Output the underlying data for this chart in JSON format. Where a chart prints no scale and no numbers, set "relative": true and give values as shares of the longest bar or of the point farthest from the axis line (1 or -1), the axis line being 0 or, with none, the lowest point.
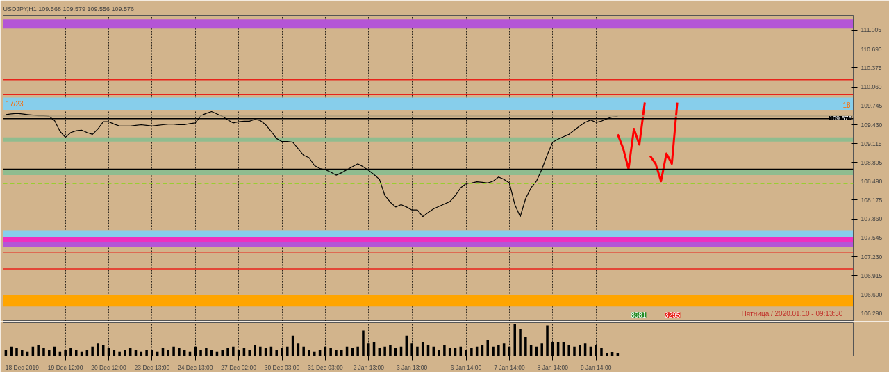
{
  "chart_data": [
    {
      "type": "line",
      "title": "USDJPY,H1  109.568 109.579 109.556 109.576",
      "categories": [
        null,
        null,
        null,
        null,
        null,
        null,
        null,
        null,
        null,
        null,
        null,
        null,
        null,
        null,
        null,
        null,
        null,
        null,
        null,
        null,
        null,
        null,
        null,
        null,
        null,
        null,
        null,
        null,
        null,
        null,
        null,
        null,
        null,
        null,
        null,
        null,
        null,
        null,
        null,
        null,
        null,
        null,
        null,
        null,
        null,
        null,
        null,
        null,
        null,
        null,
        null,
        null,
        null,
        null,
        null,
        null,
        null,
        null,
        null,
        null,
        null,
        null,
        null,
        null,
        null,
        null,
        null,
        null,
        null,
        null,
        null,
        null,
        null,
        null,
        null,
        null,
        null,
        null,
        null,
        null,
        null,
        null,
        null,
        null,
        null,
        null,
        null,
        null,
        null,
        null,
        null,
        null,
        null,
        null,
        null,
        null,
        null,
        null,
        null,
        null,
        null,
        null,
        null,
        null,
        null,
        null,
        null,
        null,
        null,
        null,
        null,
        null,
        null,
        null,
        null,
        null,
        null,
        null,
        null,
        null,
        null,
        null,
        null,
        null,
        null,
        null,
        null,
        null,
        null,
        null,
        null,
        null,
        null,
        null,
        null,
        null,
        null,
        null,
        null,
        null,
        null,
        null,
        null,
        null,
        null,
        null,
        null,
        null,
        null,
        null,
        null,
        null,
        null,
        null,
        null,
        null,
        null
      ],
      "series": [
        {
          "color": "#000000",
          "values": [
            109.6,
            109.61,
            109.62,
            109.61,
            109.6,
            109.59,
            109.58,
            109.58,
            109.57,
            109.5,
            109.32,
            109.22,
            109.3,
            109.33,
            109.34,
            109.3,
            109.27,
            109.36,
            109.48,
            109.48,
            109.44,
            109.41,
            109.41,
            109.41,
            109.42,
            109.43,
            109.42,
            109.41,
            109.42,
            109.43,
            109.44,
            109.44,
            109.43,
            109.43,
            109.45,
            109.46,
            109.58,
            109.62,
            109.65,
            109.61,
            109.57,
            109.51,
            109.46,
            109.48,
            109.49,
            109.49,
            109.52,
            109.5,
            109.43,
            109.32,
            109.2,
            109.15,
            109.15,
            109.14,
            109.03,
            108.92,
            108.88,
            108.75,
            108.7,
            108.68,
            108.64,
            108.59,
            108.63,
            108.68,
            108.73,
            108.78,
            108.73,
            108.67,
            108.6,
            108.52,
            108.25,
            108.14,
            108.06,
            108.1,
            108.06,
            108.01,
            108.01,
            107.9,
            107.97,
            108.03,
            108.07,
            108.11,
            108.15,
            108.25,
            108.38,
            108.45,
            108.46,
            108.48,
            108.47,
            108.46,
            108.49,
            108.56,
            108.52,
            108.46,
            108.1,
            107.9,
            108.2,
            108.38,
            108.49,
            108.69,
            108.93,
            109.14,
            109.19,
            109.23,
            109.27,
            109.34,
            109.41,
            109.47,
            109.51,
            109.47,
            109.49,
            109.53,
            109.56,
            109.57,
            null,
            null,
            null,
            null,
            null,
            null,
            null,
            null,
            null,
            null,
            null,
            null,
            null,
            null,
            null,
            null,
            null,
            null,
            null,
            null,
            null,
            null,
            null,
            null,
            null,
            null,
            null,
            null,
            null,
            null,
            null,
            null,
            null,
            null,
            null,
            null,
            null,
            null,
            null,
            null,
            null,
            null,
            null
          ]
        },
        {
          "color": "#ff0000",
          "values": [
            null,
            null,
            null,
            null,
            null,
            null,
            null,
            null,
            null,
            null,
            null,
            null,
            null,
            null,
            null,
            null,
            null,
            null,
            null,
            null,
            null,
            null,
            null,
            null,
            null,
            null,
            null,
            null,
            null,
            null,
            null,
            null,
            null,
            null,
            null,
            null,
            null,
            null,
            null,
            null,
            null,
            null,
            null,
            null,
            null,
            null,
            null,
            null,
            null,
            null,
            null,
            null,
            null,
            null,
            null,
            null,
            null,
            null,
            null,
            null,
            null,
            null,
            null,
            null,
            null,
            null,
            null,
            null,
            null,
            null,
            null,
            null,
            null,
            null,
            null,
            null,
            null,
            null,
            null,
            null,
            null,
            null,
            null,
            null,
            null,
            null,
            null,
            null,
            null,
            null,
            null,
            null,
            null,
            null,
            null,
            null,
            null,
            null,
            null,
            null,
            null,
            null,
            null,
            null,
            null,
            null,
            null,
            null,
            null,
            null,
            null,
            null,
            null,
            109.27,
            109.04,
            108.69,
            109.36,
            109.1,
            109.8,
            null,
            null,
            null,
            null,
            null,
            null,
            null,
            null,
            null,
            null,
            null,
            null,
            null,
            null,
            null,
            null,
            null,
            null,
            null,
            null,
            null,
            null,
            null,
            null,
            null,
            null,
            null,
            null,
            null,
            null,
            null,
            null,
            null,
            null,
            null,
            null,
            null,
            null
          ]
        },
        {
          "color": "#ff0000",
          "values": [
            null,
            null,
            null,
            null,
            null,
            null,
            null,
            null,
            null,
            null,
            null,
            null,
            null,
            null,
            null,
            null,
            null,
            null,
            null,
            null,
            null,
            null,
            null,
            null,
            null,
            null,
            null,
            null,
            null,
            null,
            null,
            null,
            null,
            null,
            null,
            null,
            null,
            null,
            null,
            null,
            null,
            null,
            null,
            null,
            null,
            null,
            null,
            null,
            null,
            null,
            null,
            null,
            null,
            null,
            null,
            null,
            null,
            null,
            null,
            null,
            null,
            null,
            null,
            null,
            null,
            null,
            null,
            null,
            null,
            null,
            null,
            null,
            null,
            null,
            null,
            null,
            null,
            null,
            null,
            null,
            null,
            null,
            null,
            null,
            null,
            null,
            null,
            null,
            null,
            null,
            null,
            null,
            null,
            null,
            null,
            null,
            null,
            null,
            null,
            null,
            null,
            null,
            null,
            null,
            null,
            null,
            null,
            null,
            null,
            null,
            null,
            null,
            null,
            null,
            null,
            null,
            null,
            null,
            null,
            108.91,
            108.78,
            108.49,
            108.95,
            108.78,
            109.8,
            null,
            null,
            null,
            null,
            null,
            null,
            null,
            null,
            null,
            null,
            null,
            null,
            null,
            null,
            null,
            null,
            null,
            null,
            null,
            null,
            null,
            null,
            null,
            null,
            null,
            null,
            null,
            null,
            null,
            null,
            null,
            null
          ]
        }
      ],
      "ylim": [
        106.155,
        111.247
      ],
      "yticks": [
        {
          "value": 111.005,
          "label": "111.005"
        },
        {
          "value": 110.69,
          "label": "110.690"
        },
        {
          "value": 110.375,
          "label": "110.375"
        },
        {
          "value": 110.06,
          "label": "110.060"
        },
        {
          "value": 109.745,
          "label": "109.745"
        },
        {
          "value": 109.43,
          "label": "109.430"
        },
        {
          "value": 109.115,
          "label": "109.115"
        },
        {
          "value": 108.805,
          "label": "108.805"
        },
        {
          "value": 108.49,
          "label": "108.490"
        },
        {
          "value": 108.175,
          "label": "108.175"
        },
        {
          "value": 107.86,
          "label": "107.860"
        },
        {
          "value": 107.545,
          "label": "107.545"
        },
        {
          "value": 107.23,
          "label": "107.230"
        },
        {
          "value": 106.915,
          "label": "106.915"
        },
        {
          "value": 106.6,
          "label": "106.600"
        },
        {
          "value": 106.29,
          "label": "106.290"
        }
      ],
      "tick_labels": "y",
      "grid": "x",
      "bands": [
        {
          "axis": "y",
          "from": 111.03,
          "to": 111.18,
          "color": "#b455d6"
        },
        {
          "axis": "y",
          "from": 109.68,
          "to": 109.88,
          "color": "#87ceeb"
        },
        {
          "axis": "y",
          "from": 109.15,
          "to": 109.22,
          "color": "#8fbc8f"
        },
        {
          "axis": "y",
          "from": 108.59,
          "to": 108.69,
          "color": "#8fbc8f"
        },
        {
          "axis": "y",
          "from": 107.56,
          "to": 107.67,
          "color": "#87ceeb"
        },
        {
          "axis": "y",
          "from": 107.48,
          "to": 107.56,
          "color": "#ee2fbe"
        },
        {
          "axis": "y",
          "from": 107.4,
          "to": 107.48,
          "color": "#b455d6"
        },
        {
          "axis": "y",
          "from": 106.4,
          "to": 106.59,
          "color": "#ffa500"
        }
      ],
      "ref_lines": [
        {
          "axis": "y",
          "value": 110.18,
          "color": "#e8231b"
        },
        {
          "axis": "y",
          "value": 109.93,
          "color": "#e8231b"
        },
        {
          "axis": "y",
          "value": 107.31,
          "color": "#e8231b"
        },
        {
          "axis": "y",
          "value": 107.03,
          "color": "#e8231b"
        },
        {
          "axis": "y",
          "value": 109.53,
          "color": "#000000"
        },
        {
          "axis": "y",
          "value": 108.69,
          "color": "#000000"
        },
        {
          "axis": "y",
          "value": 108.45,
          "color": "#9acd32",
          "line_style": "dashed"
        },
        {
          "axis": "y",
          "value": 109.576,
          "label": "109.576",
          "color": "#b0a080"
        }
      ],
      "annotations": [
        "17/23",
        "18",
        "8981",
        "3295",
        "Пятница  /  2020.01.10  -  09:13:30"
      ]
    },
    {
      "type": "bar",
      "relative": true,
      "tick_labels": "x",
      "grid": "x",
      "categories": [
        null,
        null,
        null,
        "18 Dec 2019",
        null,
        null,
        null,
        null,
        null,
        null,
        null,
        "19 Dec 12:00",
        null,
        null,
        null,
        null,
        null,
        null,
        null,
        "20 Dec 12:00",
        null,
        null,
        null,
        null,
        null,
        null,
        null,
        "23 Dec 13:00",
        null,
        null,
        null,
        null,
        null,
        null,
        null,
        "24 Dec 13:00",
        null,
        null,
        null,
        null,
        null,
        null,
        null,
        "27 Dec 02:00",
        null,
        null,
        null,
        null,
        null,
        null,
        null,
        "30 Dec 03:00",
        null,
        null,
        null,
        null,
        null,
        null,
        null,
        "31 Dec 03:00",
        null,
        null,
        null,
        null,
        null,
        null,
        null,
        "2 Jan 13:00",
        null,
        null,
        null,
        null,
        null,
        null,
        null,
        "3 Jan 13:00",
        null,
        null,
        null,
        null,
        null,
        null,
        null,
        null,
        null,
        "6 Jan 14:00",
        null,
        null,
        null,
        null,
        null,
        null,
        null,
        "7 Jan 14:00",
        null,
        null,
        null,
        null,
        null,
        null,
        null,
        "8 Jan 14:00",
        null,
        null,
        null,
        null,
        null,
        null,
        null,
        "9 Jan 14:00",
        null,
        null,
        null,
        null,
        null,
        null,
        null,
        null,
        null,
        null,
        null,
        null,
        null,
        null,
        null,
        null,
        null,
        null,
        null,
        null,
        null,
        null,
        null,
        null,
        null,
        null,
        null,
        null,
        null,
        null,
        null,
        null,
        null,
        null,
        null,
        null,
        null,
        null,
        null,
        null,
        null,
        null,
        null,
        null,
        null,
        null,
        null
      ],
      "color": "#000000",
      "values": [
        0.2,
        0.3,
        0.25,
        0.2,
        0.15,
        0.3,
        0.35,
        0.25,
        0.2,
        0.3,
        0.15,
        0.2,
        0.25,
        0.2,
        0.15,
        0.2,
        0.3,
        0.4,
        0.35,
        0.25,
        0.2,
        0.15,
        0.2,
        0.25,
        0.2,
        0.15,
        0.2,
        0.2,
        0.15,
        0.25,
        0.2,
        0.3,
        0.25,
        0.2,
        0.15,
        0.3,
        0.2,
        0.25,
        0.2,
        0.15,
        0.2,
        0.25,
        0.3,
        0.2,
        0.25,
        0.2,
        0.35,
        0.3,
        0.25,
        0.3,
        0.2,
        0.25,
        0.3,
        0.65,
        0.4,
        0.3,
        0.2,
        0.15,
        0.2,
        0.3,
        0.25,
        0.2,
        0.2,
        0.3,
        0.25,
        0.3,
        0.81,
        0.4,
        0.45,
        0.25,
        0.3,
        0.35,
        0.25,
        0.3,
        0.65,
        0.4,
        0.3,
        0.45,
        0.35,
        0.3,
        0.2,
        0.35,
        0.25,
        0.25,
        0.3,
        0.2,
        0.25,
        0.3,
        0.35,
        0.5,
        0.3,
        0.35,
        0.4,
        0.3,
        1.0,
        0.85,
        0.6,
        0.35,
        0.3,
        0.4,
        0.96,
        0.45,
        0.45,
        0.45,
        0.35,
        0.3,
        0.35,
        0.4,
        0.3,
        0.35,
        0.25,
        0.1,
        0.12,
        0.1,
        null,
        null,
        null,
        null,
        null,
        null,
        null,
        null,
        null,
        null,
        null,
        null,
        null,
        null,
        null,
        null,
        null,
        null,
        null,
        null,
        null,
        null,
        null,
        null,
        null,
        null,
        null,
        null,
        null,
        null,
        null,
        null,
        null,
        null,
        null,
        null,
        null,
        null,
        null,
        null,
        null,
        null,
        null
      ]
    }
  ]
}
